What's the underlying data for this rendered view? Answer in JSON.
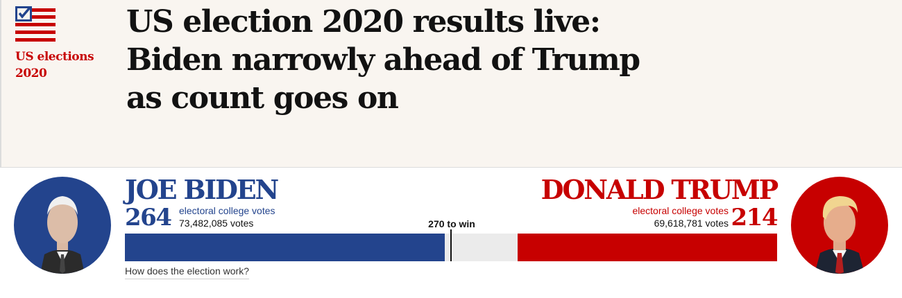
{
  "header": {
    "kicker": "US elections 2020",
    "headline": "US election 2020 results live: Biden narrowly ahead of Trump as count goes on",
    "logo_icon": "us-flag-checkbox-icon"
  },
  "results": {
    "threshold_label": "270 to win",
    "total_electoral_votes": 538,
    "threshold_votes": 270,
    "how_link_label": "How does the election work?",
    "biden": {
      "name": "JOE BIDEN",
      "electoral_votes": "264",
      "ev_label": "electoral college votes",
      "popular_votes": "73,482,085 votes",
      "color": "#23448d"
    },
    "trump": {
      "name": "DONALD TRUMP",
      "electoral_votes": "214",
      "ev_label": "electoral college votes",
      "popular_votes": "69,618,781 votes",
      "color": "#c70000"
    }
  }
}
